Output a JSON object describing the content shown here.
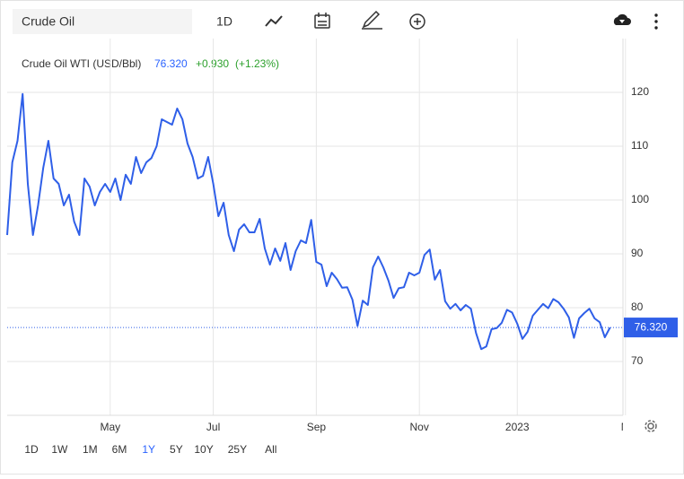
{
  "toolbar": {
    "search": "Crude Oil",
    "interval": "1D"
  },
  "header": {
    "title": "Crude Oil WTI (USD/Bbl)",
    "price": "76.320",
    "change": "+0.930",
    "change_pct": "(+1.23%)"
  },
  "ranges": [
    "1D",
    "1W",
    "1M",
    "6M",
    "1Y",
    "5Y",
    "10Y",
    "25Y",
    "All"
  ],
  "chart_data": {
    "type": "line",
    "color": "#2f5fe8",
    "grid": true,
    "categories": [
      null,
      null,
      null,
      null,
      null,
      null,
      null,
      null,
      null,
      null,
      null,
      null,
      null,
      null,
      null,
      null,
      null,
      null,
      null,
      null,
      "May",
      null,
      null,
      null,
      null,
      null,
      null,
      null,
      null,
      null,
      null,
      null,
      null,
      null,
      null,
      null,
      null,
      null,
      null,
      null,
      "Jul",
      null,
      null,
      null,
      null,
      null,
      null,
      null,
      null,
      null,
      null,
      null,
      null,
      null,
      null,
      null,
      null,
      null,
      null,
      null,
      "Sep",
      null,
      null,
      null,
      null,
      null,
      null,
      null,
      null,
      null,
      null,
      null,
      null,
      null,
      null,
      null,
      null,
      null,
      null,
      null,
      "Nov",
      null,
      null,
      null,
      null,
      null,
      null,
      null,
      null,
      null,
      null,
      null,
      null,
      null,
      null,
      null,
      null,
      null,
      null,
      "2023",
      null,
      null,
      null,
      null,
      null,
      null,
      null,
      null,
      null,
      null,
      null,
      null,
      null,
      null,
      null,
      null,
      null,
      null,
      null,
      null,
      "M"
    ],
    "values": [
      93.5,
      107,
      111,
      119.7,
      103,
      93.5,
      99,
      106,
      111,
      104,
      103,
      99,
      101,
      96,
      93.5,
      104,
      102.5,
      99,
      101.5,
      103,
      101.5,
      104,
      100,
      104.7,
      103,
      108,
      105,
      107,
      107.8,
      110,
      115,
      114.5,
      114,
      117,
      115,
      110.5,
      108,
      104,
      104.5,
      108,
      103,
      97,
      99.5,
      93.5,
      90.5,
      94.5,
      95.5,
      94,
      94,
      96.5,
      91,
      88,
      91,
      88.7,
      92,
      87,
      90.5,
      92.5,
      92,
      96.3,
      88.5,
      88,
      84,
      86.5,
      85.3,
      83.7,
      83.8,
      81.5,
      76.6,
      81.3,
      80.5,
      87.5,
      89.5,
      87.5,
      85,
      81.8,
      83.6,
      83.8,
      86.5,
      86,
      86.5,
      89.8,
      90.8,
      85.2,
      87,
      81.2,
      79.8,
      80.7,
      79.5,
      80.5,
      79.8,
      75.3,
      72.3,
      72.8,
      76,
      76.2,
      77.2,
      79.6,
      79.1,
      77,
      74.2,
      75.5,
      78.5,
      79.6,
      80.7,
      79.9,
      81.6,
      81,
      79.8,
      78.2,
      74.4,
      78,
      79,
      79.8,
      78,
      77.3,
      74.5,
      76.32,
      null,
      null,
      null
    ],
    "value_labels": [
      null,
      null,
      null,
      null,
      null,
      null,
      null,
      null,
      null,
      null,
      null,
      null,
      null,
      null,
      null,
      null,
      null,
      null,
      null,
      null,
      null,
      null,
      null,
      null,
      null,
      null,
      null,
      null,
      null,
      null,
      null,
      null,
      null,
      null,
      null,
      null,
      null,
      null,
      null,
      null,
      null,
      null,
      null,
      null,
      null,
      null,
      null,
      null,
      null,
      null,
      null,
      null,
      null,
      null,
      null,
      null,
      null,
      null,
      null,
      null,
      null,
      null,
      null,
      null,
      null,
      null,
      null,
      null,
      null,
      null,
      null,
      null,
      null,
      null,
      null,
      null,
      null,
      null,
      null,
      null,
      null,
      null,
      null,
      null,
      null,
      null,
      null,
      null,
      null,
      null,
      null,
      null,
      null,
      null,
      null,
      null,
      null,
      null,
      null,
      null,
      null,
      null,
      null,
      null,
      null,
      null,
      null,
      null,
      null,
      null,
      null,
      null,
      null,
      null,
      null,
      null,
      null,
      "76.320",
      null,
      null,
      null
    ],
    "ylim": [
      60,
      130
    ],
    "yticks": [
      70,
      80,
      90,
      100,
      110,
      120
    ]
  }
}
